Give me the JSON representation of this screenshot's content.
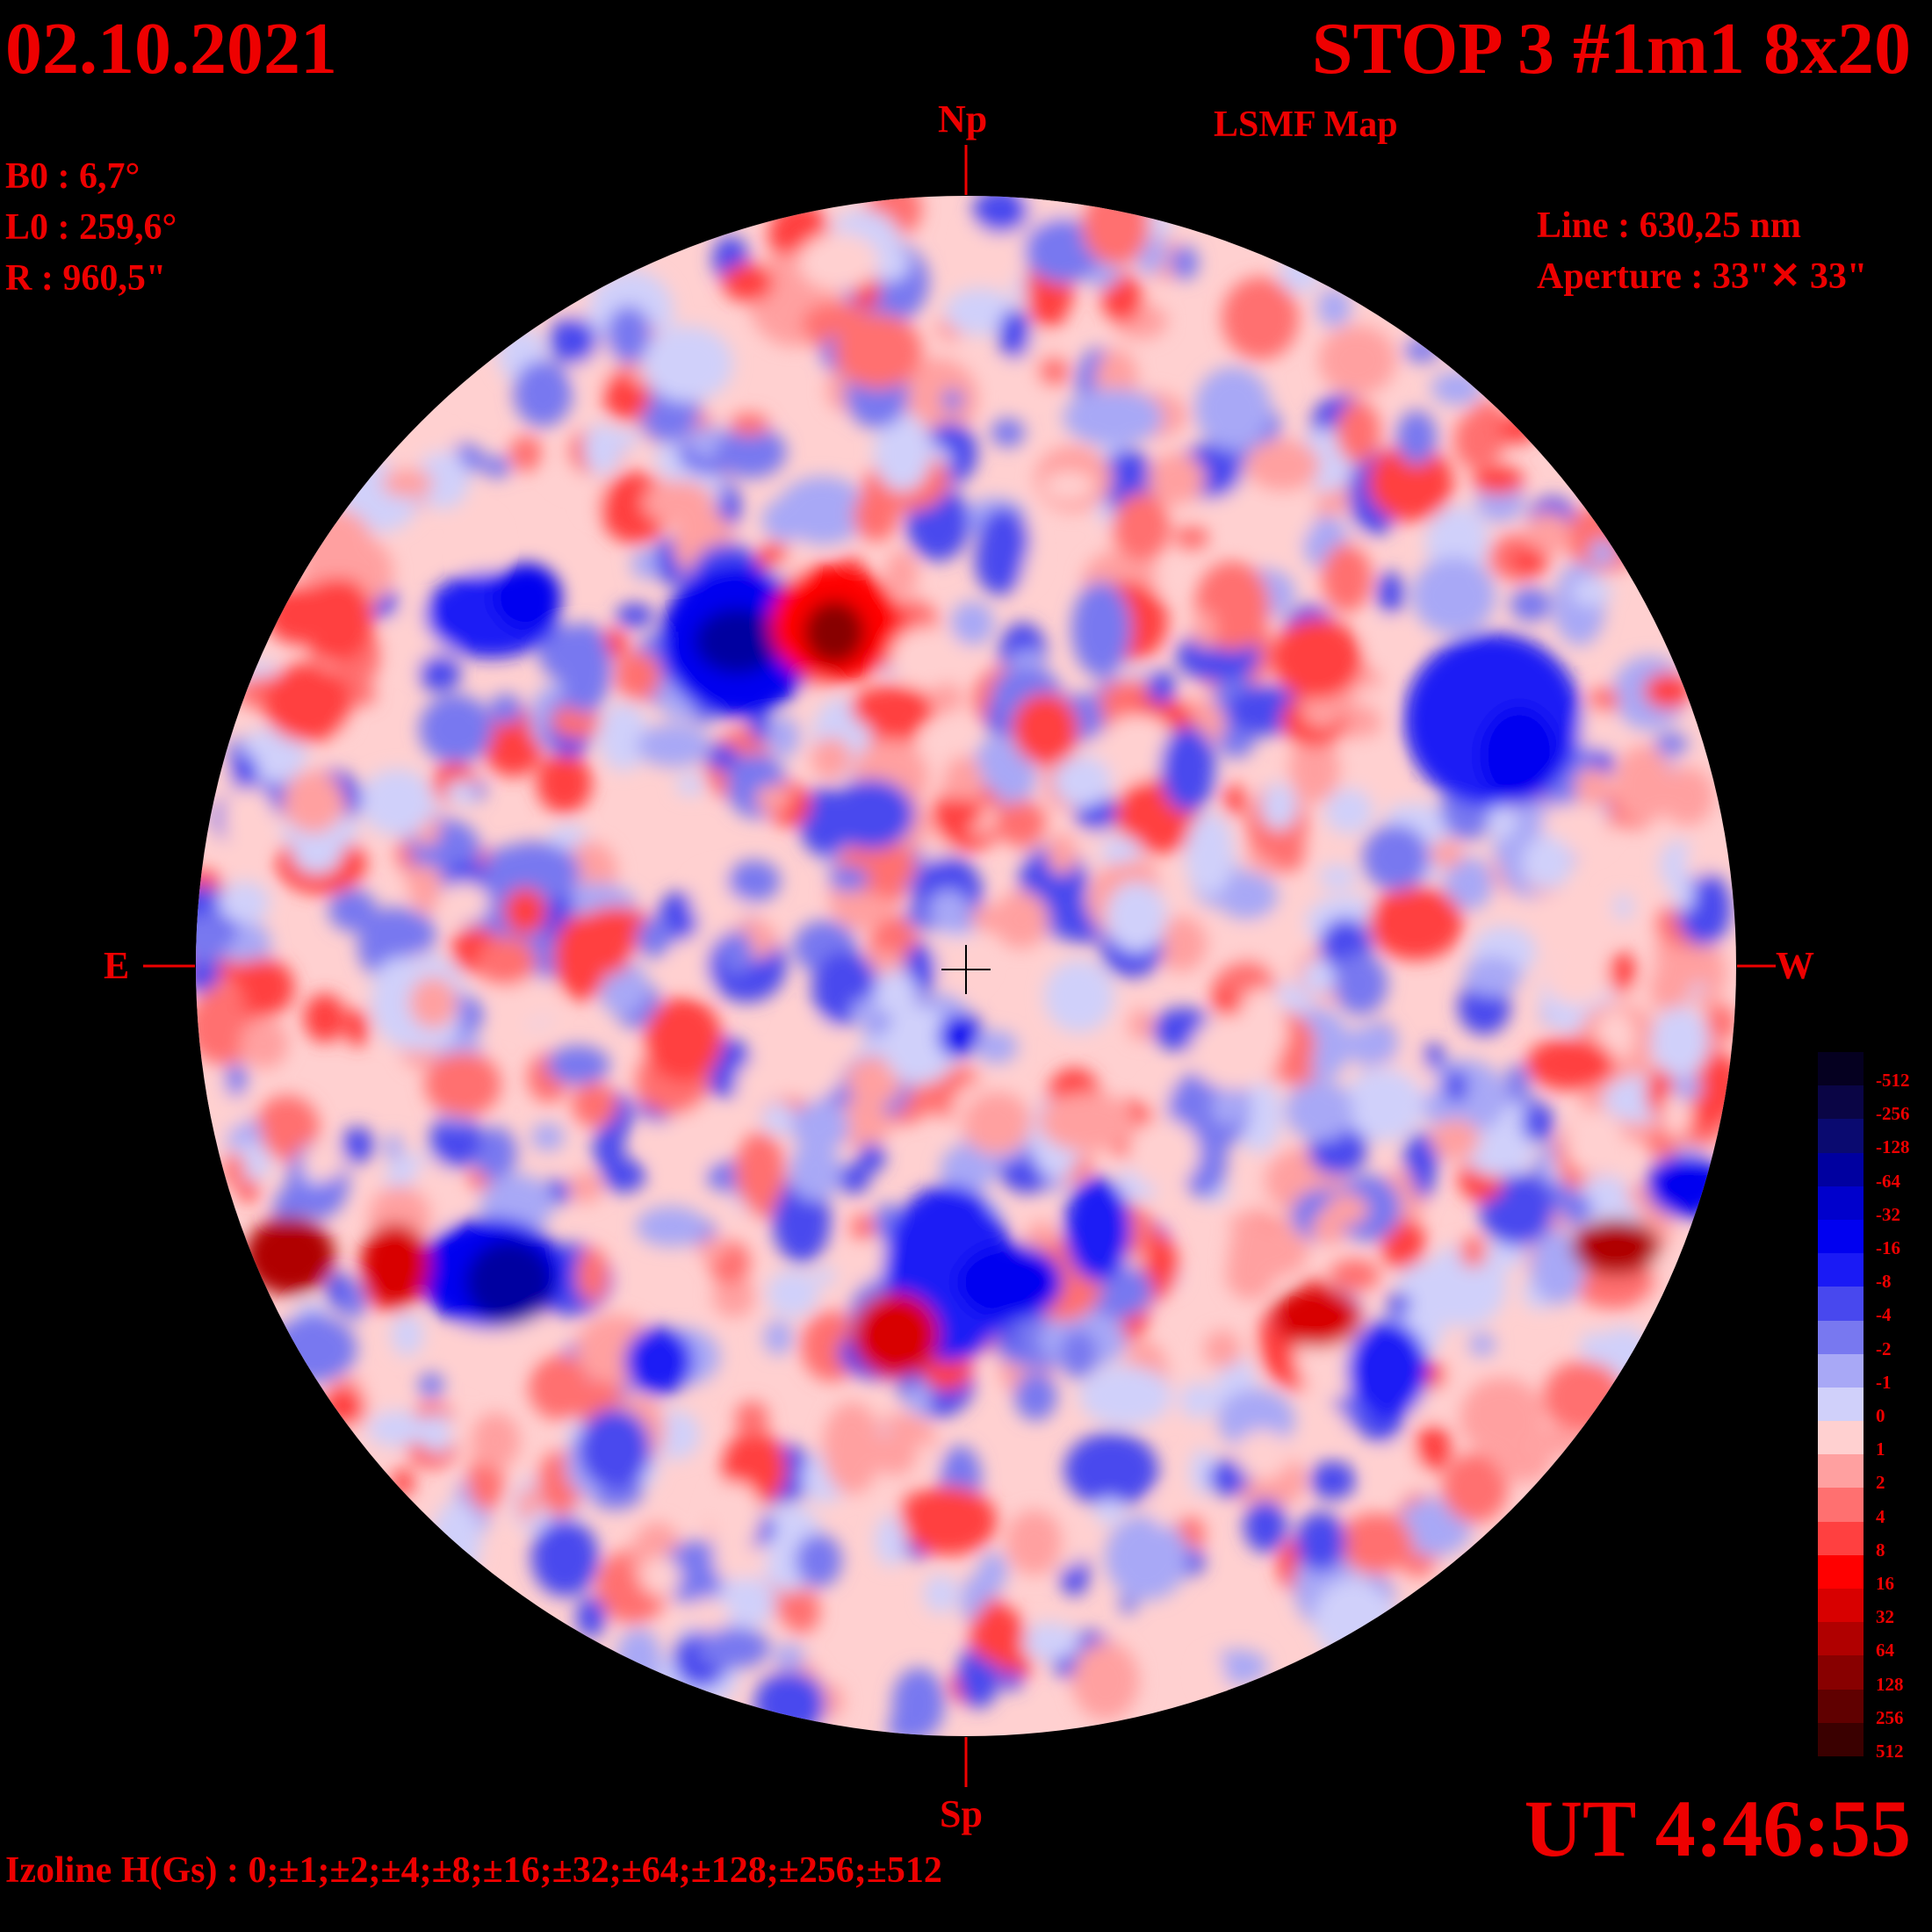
{
  "header": {
    "date": "02.10.2021",
    "title": "STOP 3 #1m1 8x20",
    "subtitle": "LSMF  Map"
  },
  "params": {
    "b0": "B0 : 6,7°",
    "l0": "L0 : 259,6°",
    "r": "R  : 960,5\"",
    "line": "Line :  630,25 nm",
    "aperture": "Aperture : 33\"✕ 33\""
  },
  "directions": {
    "north": "Np",
    "south": "Sp",
    "east": "E",
    "west": "W"
  },
  "footer": {
    "ut": "UT 4:46:55",
    "izoline": "Izoline H(Gs) : 0;±1;±2;±4;±8;±16;±32;±64;±128;±256;±512"
  },
  "colors": {
    "accent": "#ee0000",
    "background": "#000000",
    "border": "#ffffff"
  },
  "scale": [
    {
      "label": "-512",
      "color": "#050020"
    },
    {
      "label": "-256",
      "color": "#0a0545"
    },
    {
      "label": "-128",
      "color": "#0a0a70"
    },
    {
      "label": "-64",
      "color": "#0000a0"
    },
    {
      "label": "-32",
      "color": "#0000cc"
    },
    {
      "label": "-16",
      "color": "#0000f0"
    },
    {
      "label": "-8",
      "color": "#1a1af5"
    },
    {
      "label": "-4",
      "color": "#4848ee"
    },
    {
      "label": "-2",
      "color": "#7878f0"
    },
    {
      "label": "-1",
      "color": "#a8a8f6"
    },
    {
      "label": "0",
      "color": "#d0d0fa"
    },
    {
      "label": "1",
      "color": "#ffd0d0"
    },
    {
      "label": "2",
      "color": "#ffa0a0"
    },
    {
      "label": "4",
      "color": "#ff7070"
    },
    {
      "label": "8",
      "color": "#ff4040"
    },
    {
      "label": "16",
      "color": "#ff0000"
    },
    {
      "label": "32",
      "color": "#d80000"
    },
    {
      "label": "64",
      "color": "#b00000"
    },
    {
      "label": "128",
      "color": "#880000"
    },
    {
      "label": "256",
      "color": "#600000"
    },
    {
      "label": "512",
      "color": "#3a0000"
    }
  ]
}
